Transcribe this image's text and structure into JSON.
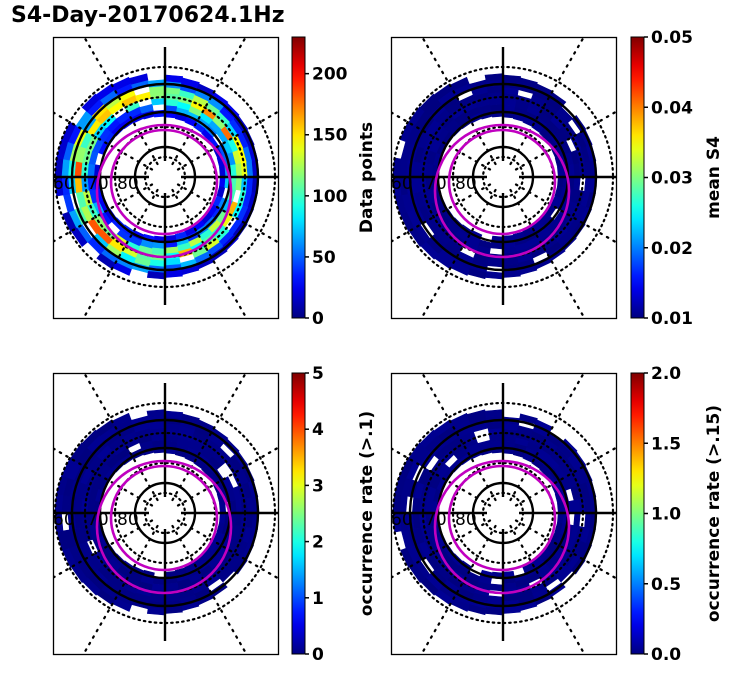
{
  "title": "S4-Day-20170624.1Hz",
  "colormap": "jet",
  "colors": {
    "grid": "#000000",
    "contour": "#c000c0",
    "low": "#00007f",
    "axes": "#000000"
  },
  "chart_data": [
    {
      "type": "heatmap",
      "projection": "polar",
      "panel": "top-left",
      "title": "",
      "lat_labels": [
        "60",
        "70",
        "80"
      ],
      "colorbar": {
        "label": "Data points",
        "ticks": [
          "0",
          "50",
          "100",
          "150",
          "200"
        ],
        "tick_values": [
          0,
          50,
          100,
          150,
          200
        ],
        "range": [
          0,
          230
        ]
      },
      "ring_colat_range_deg": [
        20,
        33
      ],
      "ring_values_description": "counts peak ~150-200 in a band near 65-70 deg latitude; lower 10-60 elsewhere",
      "ring_profile": {
        "colatitudes": [
          20,
          22,
          24,
          26,
          28,
          30,
          32
        ],
        "typical_values": [
          30,
          60,
          110,
          150,
          120,
          60,
          20
        ]
      }
    },
    {
      "type": "heatmap",
      "projection": "polar",
      "panel": "top-right",
      "lat_labels": [
        "60",
        "70",
        "80"
      ],
      "colorbar": {
        "label": "mean S4",
        "ticks": [
          "0.01",
          "0.02",
          "0.03",
          "0.04",
          "0.05"
        ],
        "tick_values": [
          0.01,
          0.02,
          0.03,
          0.04,
          0.05
        ],
        "range": [
          0.01,
          0.05
        ]
      },
      "ring_value": 0.01
    },
    {
      "type": "heatmap",
      "projection": "polar",
      "panel": "bottom-left",
      "lat_labels": [
        "60",
        "70",
        "80"
      ],
      "colorbar": {
        "label": "occurrence rate (>.1)",
        "ticks": [
          "0",
          "1",
          "2",
          "3",
          "4",
          "5"
        ],
        "tick_values": [
          0,
          1,
          2,
          3,
          4,
          5
        ],
        "range": [
          0,
          5
        ]
      },
      "ring_value": 0
    },
    {
      "type": "heatmap",
      "projection": "polar",
      "panel": "bottom-right",
      "lat_labels": [
        "60",
        "70",
        "80"
      ],
      "colorbar": {
        "label": "occurrence rate (>.15)",
        "ticks": [
          "0.0",
          "0.5",
          "1.0",
          "1.5",
          "2.0"
        ],
        "tick_values": [
          0.0,
          0.5,
          1.0,
          1.5,
          2.0
        ],
        "range": [
          0.0,
          2.0
        ]
      },
      "ring_value": 0.0
    }
  ],
  "grid": {
    "solid_circles_lat": [
      60,
      70,
      80
    ],
    "dotted_circles_lat": [
      55,
      65,
      75,
      85
    ],
    "meridian_spokes_deg": [
      0,
      30,
      60,
      90,
      120,
      150,
      180,
      210,
      240,
      270,
      300,
      330
    ]
  }
}
